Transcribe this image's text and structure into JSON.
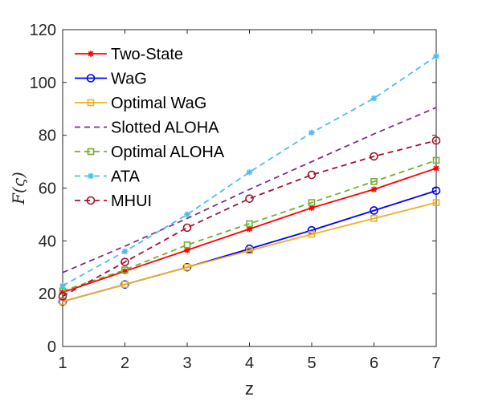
{
  "chart_data": {
    "type": "line",
    "title": "",
    "xlabel": "z",
    "ylabel": "F(ς)",
    "xlim": [
      1,
      7
    ],
    "ylim": [
      0,
      120
    ],
    "x": [
      1,
      2,
      3,
      4,
      5,
      6,
      7
    ],
    "xticks": [
      "1",
      "2",
      "3",
      "4",
      "5",
      "6",
      "7"
    ],
    "yticks": [
      "0",
      "20",
      "40",
      "60",
      "80",
      "100",
      "120"
    ],
    "legend_position": "top-left",
    "series": [
      {
        "name": "Two-State",
        "color": "#ff0000",
        "dash": "solid",
        "marker": "asterisk",
        "values": [
          20.5,
          28.5,
          36.5,
          44.5,
          52.5,
          59.5,
          67.5
        ]
      },
      {
        "name": "WaG",
        "color": "#0000ff",
        "dash": "solid",
        "marker": "circle",
        "values": [
          17,
          23.5,
          30,
          37,
          44,
          51.5,
          59
        ]
      },
      {
        "name": "Optimal WaG",
        "color": "#edb120",
        "dash": "solid",
        "marker": "square",
        "values": [
          17,
          23.5,
          30,
          36.3,
          42.5,
          48.5,
          54.5
        ]
      },
      {
        "name": "Slotted ALOHA",
        "color": "#7e2f8e",
        "dash": "dashed",
        "marker": "none",
        "values": [
          28,
          38,
          48.5,
          59.5,
          70,
          80.5,
          90.5
        ]
      },
      {
        "name": "Optimal ALOHA",
        "color": "#77ac30",
        "dash": "dashed",
        "marker": "square",
        "values": [
          21,
          29,
          38.5,
          46.5,
          54.5,
          62.5,
          70.5
        ]
      },
      {
        "name": "ATA",
        "color": "#4dbeee",
        "dash": "dashed",
        "marker": "asterisk",
        "values": [
          23,
          36,
          50,
          66,
          81,
          94,
          110
        ]
      },
      {
        "name": "MHUI",
        "color": "#a2142f",
        "dash": "dashed",
        "marker": "circle",
        "values": [
          19,
          32,
          45,
          56,
          65,
          72,
          78
        ]
      }
    ]
  }
}
